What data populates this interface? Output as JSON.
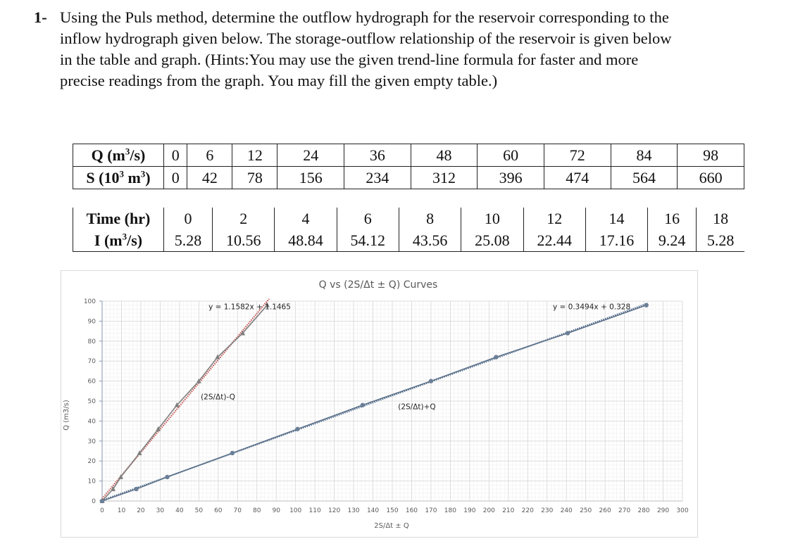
{
  "problem": {
    "number": "1-",
    "lines": [
      "Using the Puls method, determine the outflow hydrograph for the reservoir corresponding to the",
      "inflow hydrograph given below. The storage-outflow relationship of the reservoir is given below",
      "in the table and graph. (Hints:You may use the given trend-line formula for faster and more",
      "precise readings from the graph. You may fill the given empty table.)"
    ]
  },
  "storage_table": {
    "q_label": "Q (m",
    "q_label_sup": "3",
    "q_label_end": "/s)",
    "s_label": "S (10",
    "s_label_sup1": "3",
    "s_label_mid": " m",
    "s_label_sup2": "3",
    "s_label_end": ")",
    "Q": [
      "0",
      "6",
      "12",
      "24",
      "36",
      "48",
      "60",
      "72",
      "84",
      "98"
    ],
    "S": [
      "0",
      "42",
      "78",
      "156",
      "234",
      "312",
      "396",
      "474",
      "564",
      "660"
    ]
  },
  "inflow_table": {
    "time_label": "Time (hr)",
    "i_label": "I (m",
    "i_label_sup": "3",
    "i_label_end": "/s)",
    "time": [
      "0",
      "2",
      "4",
      "6",
      "8",
      "10",
      "12",
      "14",
      "16",
      "18"
    ],
    "I": [
      "5.28",
      "10.56",
      "48.84",
      "54.12",
      "43.56",
      "25.08",
      "22.44",
      "17.16",
      "9.24",
      "5.28"
    ]
  },
  "chart_data": {
    "type": "line",
    "title": "Q vs (2S/Δt ± Q) Curves",
    "xlabel": "2S/Δt ± Q",
    "ylabel": "Q (m3/s)",
    "xlim": [
      0,
      300
    ],
    "ylim": [
      0,
      100
    ],
    "x_ticks": [
      "0",
      "10",
      "20",
      "30",
      "40",
      "50",
      "60",
      "70",
      "80",
      "90",
      "100",
      "110",
      "120",
      "130",
      "140",
      "150",
      "160",
      "170",
      "180",
      "190",
      "200",
      "210",
      "220",
      "230",
      "240",
      "250",
      "260",
      "270",
      "280",
      "290",
      "300"
    ],
    "y_ticks": [
      "0",
      "10",
      "20",
      "30",
      "40",
      "50",
      "60",
      "70",
      "80",
      "90",
      "100"
    ],
    "grid": true,
    "legend": "none",
    "series": [
      {
        "name": "(2S/Δt)-Q",
        "color": "#7f7f7f",
        "marker": "triangle",
        "trendline": "y = 1.1582x + 1.1465",
        "trendline_color": "#c0504d",
        "x": [
          0,
          5.67,
          9.67,
          19.33,
          29.0,
          38.67,
          50.0,
          59.67,
          72.67,
          85.33
        ],
        "y": [
          0,
          6,
          12,
          24,
          36,
          48,
          60,
          72,
          84,
          98
        ]
      },
      {
        "name": "(2S/Δt)+Q",
        "color": "#5b7089",
        "marker": "circle",
        "trendline": "y = 0.3494x + 0.328",
        "trendline_color": "#4f6b8a",
        "x": [
          0,
          17.67,
          33.67,
          67.33,
          101.0,
          134.67,
          170.0,
          203.67,
          240.67,
          281.33
        ],
        "y": [
          0,
          6,
          12,
          24,
          36,
          48,
          60,
          72,
          84,
          98
        ]
      }
    ],
    "annotations": [
      {
        "text": "y = 1.1582x + 1.1465",
        "x": 55,
        "y": 97
      },
      {
        "text": "(2S/Δt)-Q",
        "x": 51,
        "y": 52
      },
      {
        "text": "y = 0.3494x + 0.328",
        "x": 233,
        "y": 97
      },
      {
        "text": "(2S/Δt)+Q",
        "x": 153,
        "y": 47
      }
    ]
  }
}
